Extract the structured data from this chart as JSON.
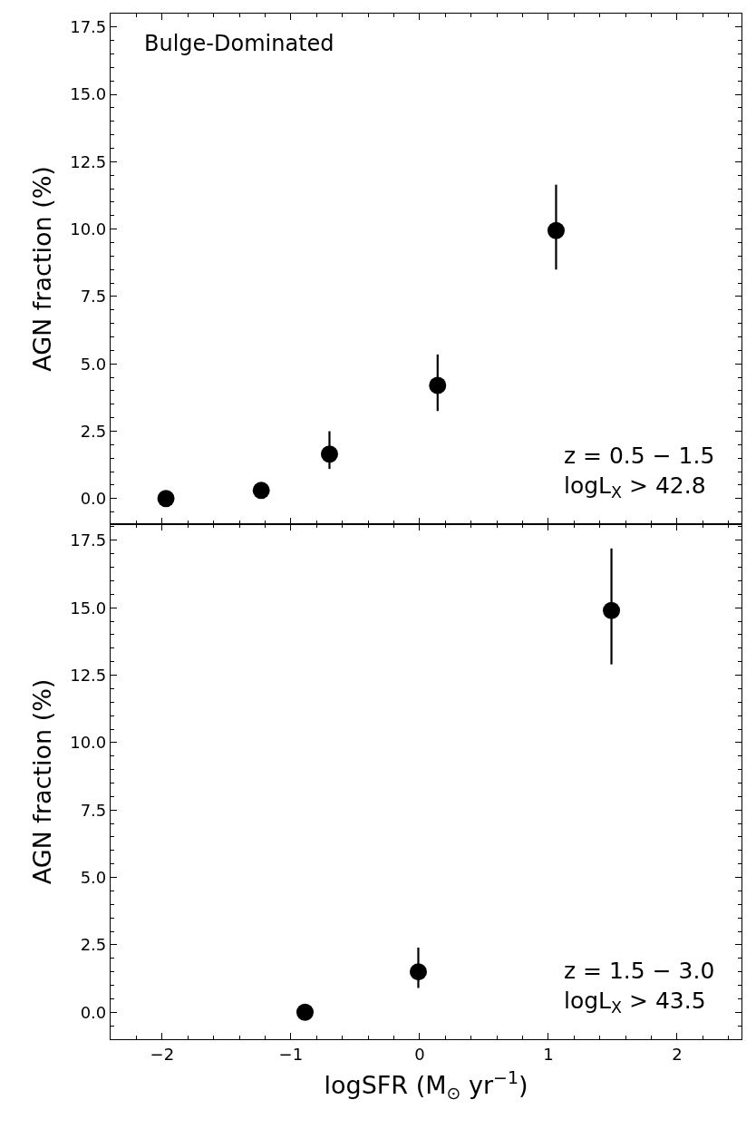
{
  "chart_data": [
    {
      "type": "scatter",
      "x": [
        -1.97,
        -1.23,
        -0.7,
        0.14,
        1.06
      ],
      "values": [
        0,
        0.3,
        1.65,
        4.2,
        9.95
      ],
      "errors": [
        null,
        [
          0.1,
          0.6
        ],
        [
          1.1,
          2.5
        ],
        [
          3.25,
          5.35
        ],
        [
          8.5,
          11.65
        ]
      ],
      "color": "#000000",
      "marker": "circle",
      "xlim": [
        -2.4,
        2.5
      ],
      "xticks": [
        -2,
        -1,
        0,
        1,
        2
      ],
      "ylim": [
        -0.95,
        18.0
      ],
      "yticks": [
        {
          "value": 0,
          "label": "0.0"
        },
        {
          "value": 2.5,
          "label": "2.5"
        },
        {
          "value": 5,
          "label": "5.0"
        },
        {
          "value": 7.5,
          "label": "7.5"
        },
        {
          "value": 10,
          "label": "10.0"
        },
        {
          "value": 12.5,
          "label": "12.5"
        },
        {
          "value": 15,
          "label": "15.0"
        },
        {
          "value": 17.5,
          "label": "17.5"
        }
      ],
      "ylabel": "AGN fraction (%)",
      "tick_labels": "y",
      "annotations": [
        "Bulge-Dominated",
        "z = 0.5 − 1.5\nlogL$_{X}$ > 42.8"
      ]
    },
    {
      "type": "scatter",
      "x": [
        -0.89,
        -0.01,
        1.49
      ],
      "values": [
        0,
        1.5,
        14.9
      ],
      "errors": [
        null,
        [
          0.9,
          2.4
        ],
        [
          12.9,
          17.2
        ]
      ],
      "color": "#000000",
      "marker": "circle",
      "xlim": [
        -2.4,
        2.5
      ],
      "xticks": [
        {
          "value": -2,
          "label": "−2"
        },
        {
          "value": -1,
          "label": "−1"
        },
        0,
        1,
        2
      ],
      "ylim": [
        -1.0,
        18.1
      ],
      "yticks": [
        {
          "value": 0,
          "label": "0.0"
        },
        {
          "value": 2.5,
          "label": "2.5"
        },
        {
          "value": 5,
          "label": "5.0"
        },
        {
          "value": 7.5,
          "label": "7.5"
        },
        {
          "value": 10,
          "label": "10.0"
        },
        {
          "value": 12.5,
          "label": "12.5"
        },
        {
          "value": 15,
          "label": "15.0"
        },
        {
          "value": 17.5,
          "label": "17.5"
        }
      ],
      "xlabel": "logSFR (M$_{⊙}$ yr$^{−1}$)",
      "ylabel": "AGN fraction (%)",
      "annotations": [
        "z = 1.5 − 3.0\nlogL$_{X}$ > 43.5"
      ]
    }
  ]
}
